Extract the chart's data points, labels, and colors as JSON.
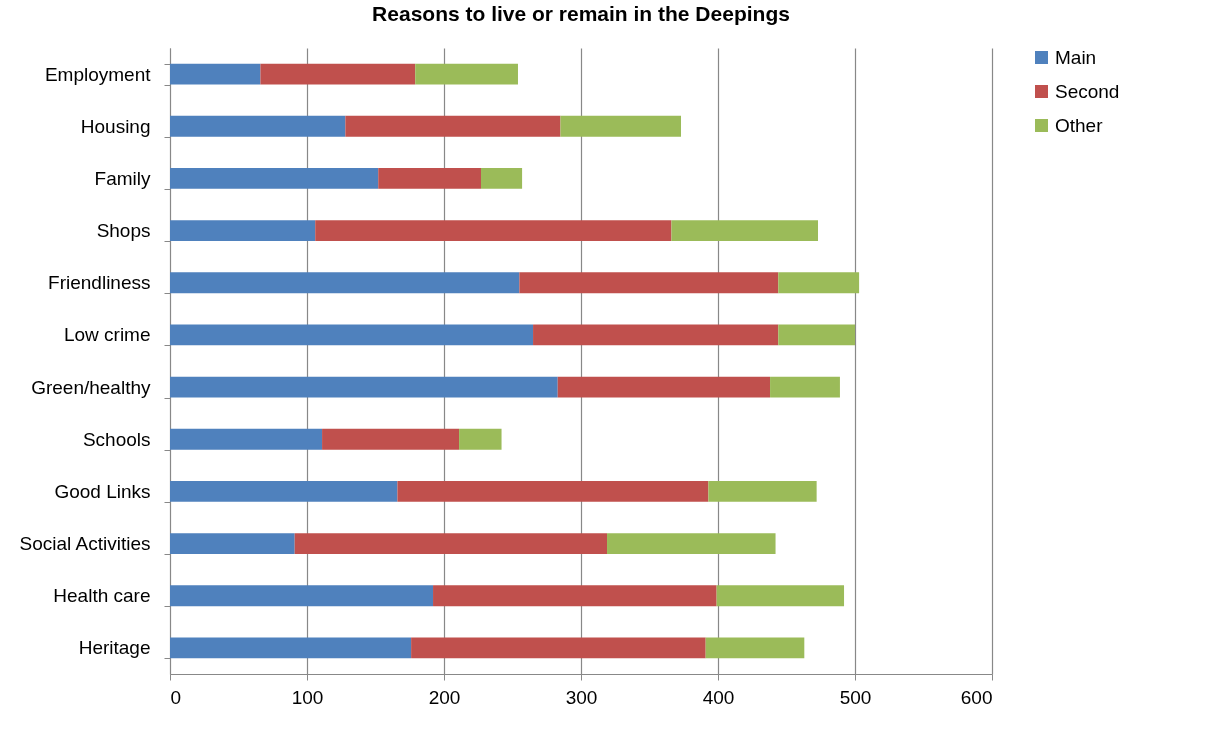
{
  "chart_data": {
    "type": "bar",
    "title": "Reasons to live or remain in the Deepings",
    "orientation": "horizontal",
    "stacked": true,
    "categories": [
      "Employment",
      "Housing",
      "Family",
      "Shops",
      "Friendliness",
      "Low crime",
      "Green/healthy",
      "Schools",
      "Good Links",
      "Social Activities",
      "Health care",
      "Heritage"
    ],
    "series": [
      {
        "name": "Main",
        "color": "#4f81bd",
        "values": [
          66,
          128,
          152,
          106,
          255,
          265,
          283,
          111,
          166,
          91,
          192,
          176
        ]
      },
      {
        "name": "Second",
        "color": "#c0504d",
        "values": [
          113,
          157,
          75,
          260,
          189,
          179,
          155,
          100,
          227,
          228,
          207,
          215
        ]
      },
      {
        "name": "Other",
        "color": "#9bbb59",
        "values": [
          75,
          88,
          30,
          107,
          59,
          56,
          51,
          31,
          79,
          123,
          93,
          72
        ]
      }
    ],
    "xlim": [
      0,
      600
    ],
    "xticks": [
      0,
      100,
      200,
      300,
      400,
      500,
      600
    ],
    "grid": "x",
    "legend": "right"
  }
}
